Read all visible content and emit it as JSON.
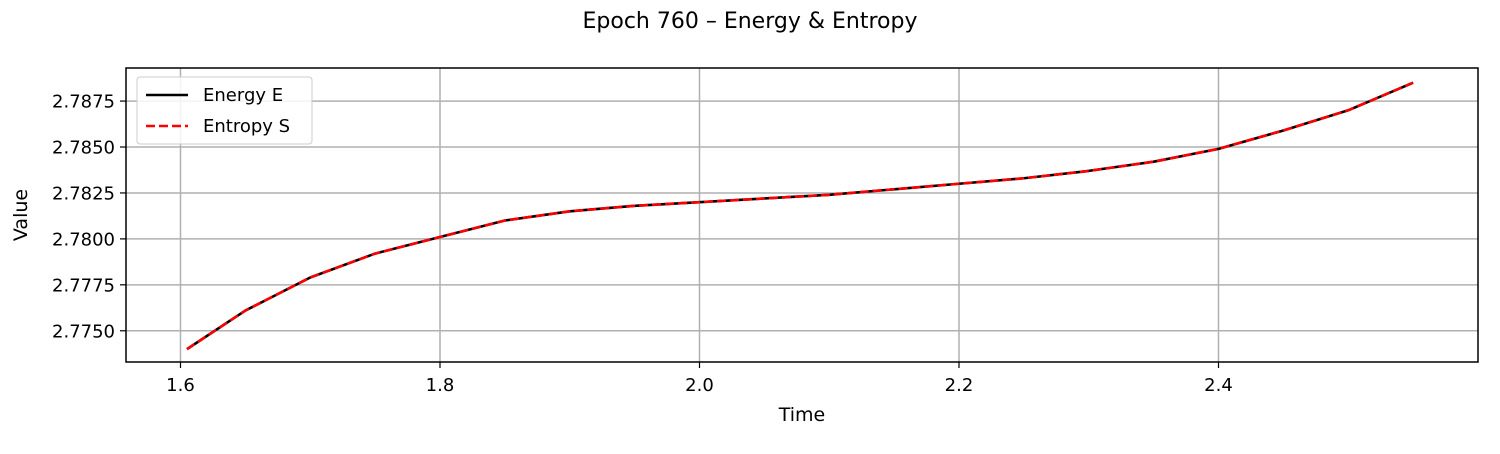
{
  "chart_data": {
    "type": "line",
    "title": "Epoch 760 – Energy & Entropy",
    "xlabel": "Time",
    "ylabel": "Value",
    "xlim": [
      1.558,
      2.6
    ],
    "ylim": [
      2.7733,
      2.7893
    ],
    "xticks": [
      1.6,
      1.8,
      2.0,
      2.2,
      2.4
    ],
    "xtick_labels": [
      "1.6",
      "1.8",
      "2.0",
      "2.2",
      "2.4"
    ],
    "yticks": [
      2.775,
      2.7775,
      2.78,
      2.7825,
      2.785,
      2.7875
    ],
    "ytick_labels": [
      "2.7750",
      "2.7775",
      "2.7800",
      "2.7825",
      "2.7850",
      "2.7875"
    ],
    "grid": true,
    "legend_position": "upper-left",
    "x": [
      1.605,
      1.65,
      1.7,
      1.75,
      1.8,
      1.85,
      1.9,
      1.95,
      2.0,
      2.05,
      2.1,
      2.15,
      2.2,
      2.25,
      2.3,
      2.35,
      2.4,
      2.45,
      2.5,
      2.55
    ],
    "series": [
      {
        "name": "Energy E",
        "color": "#000000",
        "style": "solid",
        "values": [
          2.774,
          2.7761,
          2.7779,
          2.7792,
          2.7801,
          2.781,
          2.7815,
          2.7818,
          2.782,
          2.7822,
          2.7824,
          2.7827,
          2.783,
          2.7833,
          2.7837,
          2.7842,
          2.7849,
          2.7859,
          2.787,
          2.7885
        ]
      },
      {
        "name": "Entropy S",
        "color": "#ff0000",
        "style": "dashed",
        "values": [
          2.774,
          2.7761,
          2.7779,
          2.7792,
          2.7801,
          2.781,
          2.7815,
          2.7818,
          2.782,
          2.7822,
          2.7824,
          2.7827,
          2.783,
          2.7833,
          2.7837,
          2.7842,
          2.7849,
          2.7859,
          2.787,
          2.7885
        ]
      }
    ]
  }
}
